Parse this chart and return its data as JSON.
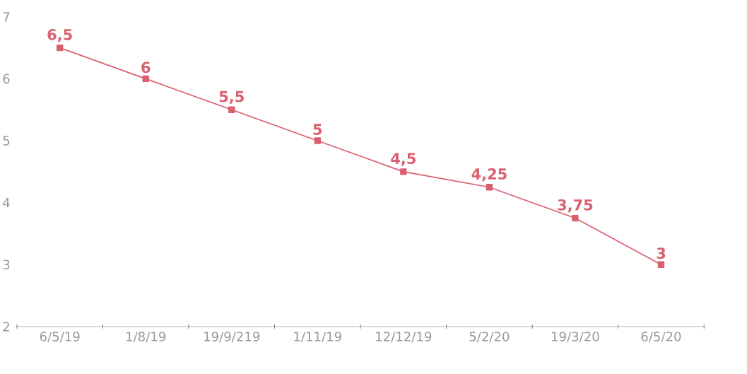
{
  "chart_data": {
    "type": "line",
    "categories": [
      "6/5/19",
      "1/8/19",
      "19/9/219",
      "1/11/19",
      "12/12/19",
      "5/2/20",
      "19/3/20",
      "6/5/20"
    ],
    "values": [
      6.5,
      6,
      5.5,
      5,
      4.5,
      4.25,
      3.75,
      3
    ],
    "value_labels": [
      "6,5",
      "6",
      "5,5",
      "5",
      "4,5",
      "4,25",
      "3,75",
      "3"
    ],
    "color": "#d9606e",
    "marker": "square",
    "ylim": [
      2,
      7
    ],
    "yticks": [
      2,
      3,
      4,
      5,
      6,
      7
    ],
    "grid": false
  }
}
